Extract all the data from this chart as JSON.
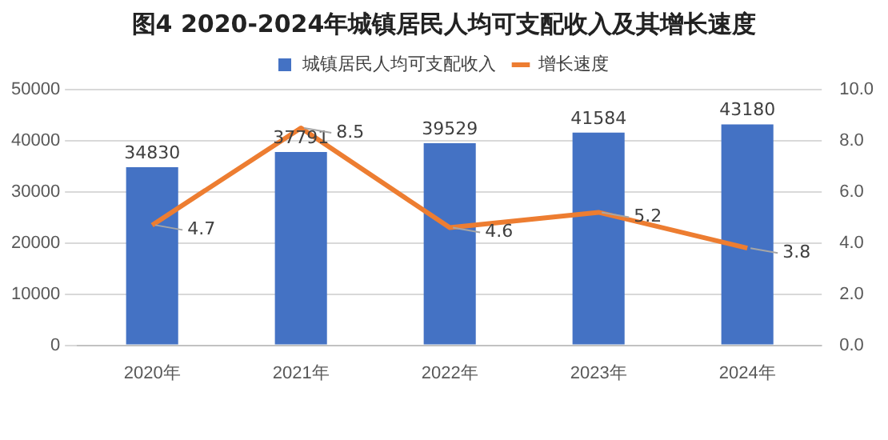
{
  "chart_data": {
    "type": "bar",
    "title": "图4  2020-2024年城镇居民人均可支配收入及其增长速度",
    "categories": [
      "2020年",
      "2021年",
      "2022年",
      "2023年",
      "2024年"
    ],
    "series": [
      {
        "name": "城镇居民人均可支配收入",
        "color": "#4472c4",
        "values": [
          34830,
          37791,
          39529,
          41584,
          43180
        ]
      },
      {
        "name": "增长速度",
        "type": "line",
        "axis": "y2",
        "color": "#ed7d31",
        "values": [
          4.7,
          8.5,
          4.6,
          5.2,
          3.8
        ]
      }
    ],
    "ylim": [
      0,
      50000
    ],
    "yticks": [
      0,
      10000,
      20000,
      30000,
      40000,
      50000
    ],
    "y2lim": [
      0,
      10
    ],
    "y2ticks": [
      {
        "value": 0,
        "label": "0.0"
      },
      {
        "value": 2,
        "label": "2.0"
      },
      {
        "value": 4,
        "label": "4.0"
      },
      {
        "value": 6,
        "label": "6.0"
      },
      {
        "value": 8,
        "label": "8.0"
      },
      {
        "value": 10,
        "label": "10.0"
      }
    ],
    "grid": "y",
    "legend": "top",
    "marker": "none",
    "line_style": "solid",
    "data_labels": true
  }
}
